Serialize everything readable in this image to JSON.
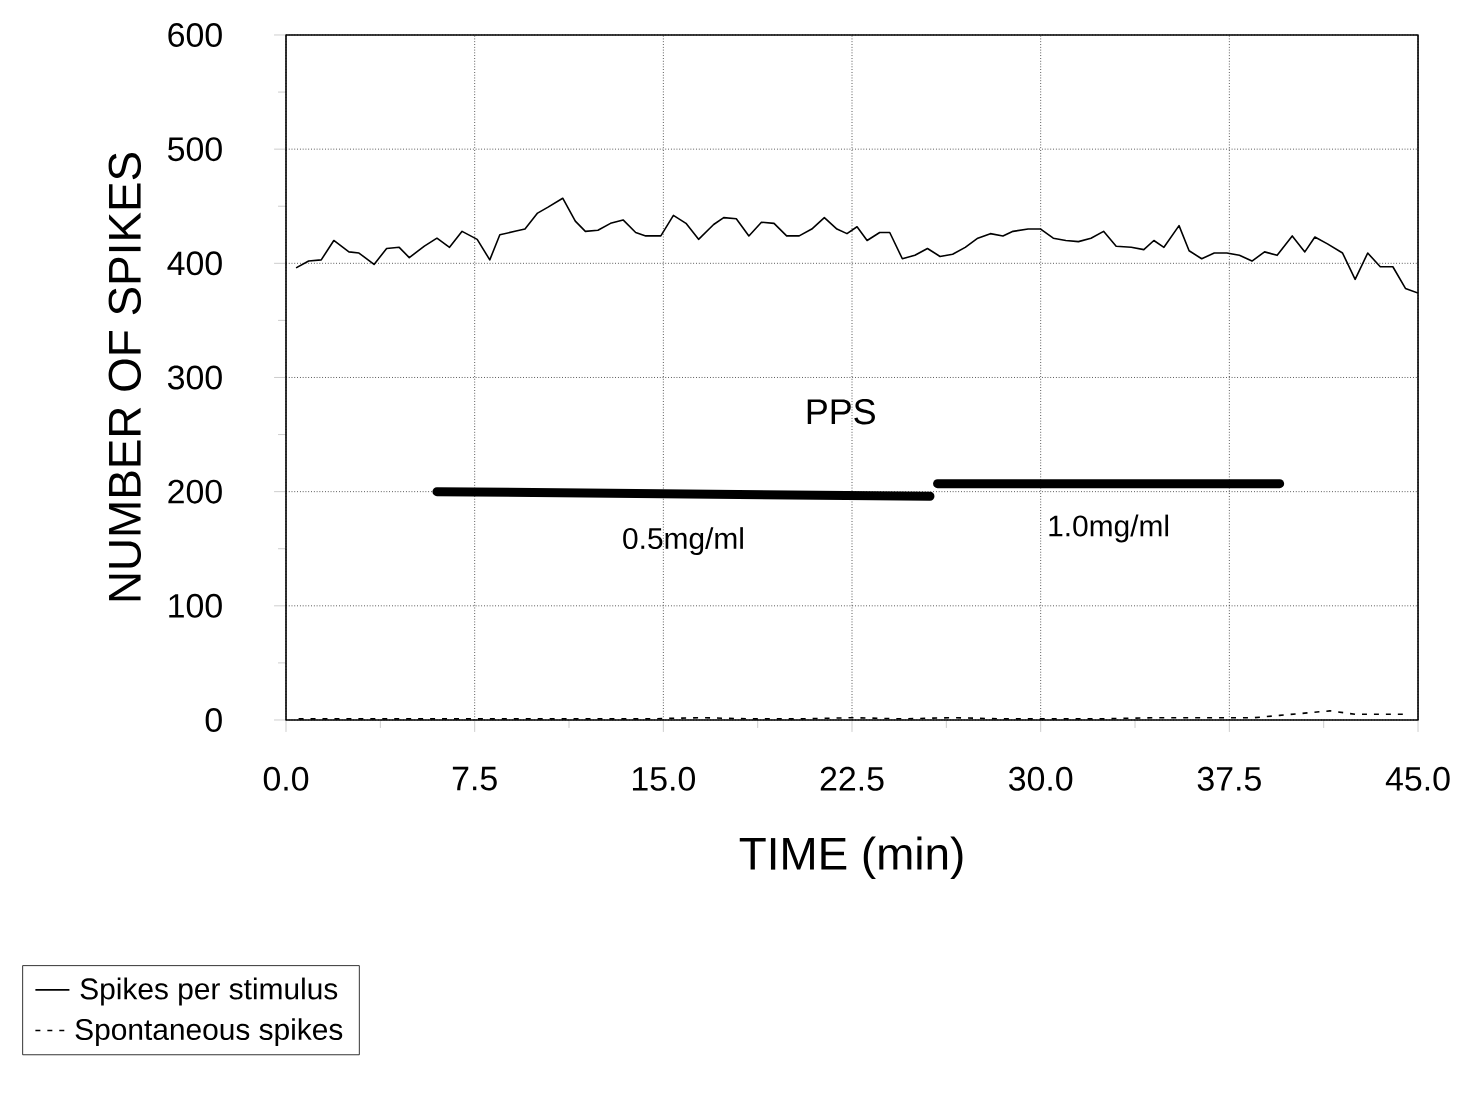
{
  "chart_data": {
    "type": "line",
    "xlabel": "TIME (min)",
    "ylabel": "NUMBER OF SPIKES",
    "xlim": [
      0,
      45
    ],
    "ylim": [
      0,
      600
    ],
    "xticks": [
      {
        "value": 0,
        "label": "0.0"
      },
      {
        "value": 7.5,
        "label": "7.5"
      },
      {
        "value": 15,
        "label": "15.0"
      },
      {
        "value": 22.5,
        "label": "22.5"
      },
      {
        "value": 30,
        "label": "30.0"
      },
      {
        "value": 37.5,
        "label": "37.5"
      },
      {
        "value": 45,
        "label": "45.0"
      }
    ],
    "yticks": [
      0,
      100,
      200,
      300,
      400,
      500,
      600
    ],
    "grid": true,
    "legend": "bottom left",
    "marker": "none",
    "annotations": [
      "PPS"
    ],
    "x": [
      0.4,
      0.9,
      1.4,
      1.9,
      2.5,
      2.9,
      3.5,
      4.0,
      4.5,
      4.9,
      5.5,
      6.0,
      6.5,
      7.0,
      7.6,
      8.1,
      8.5,
      9.1,
      9.5,
      10.0,
      10.4,
      11.0,
      11.5,
      11.9,
      12.4,
      12.9,
      13.4,
      13.9,
      14.3,
      14.9,
      15.4,
      15.9,
      16.4,
      17.0,
      17.4,
      17.9,
      18.4,
      18.9,
      19.4,
      19.9,
      20.4,
      20.9,
      21.4,
      21.9,
      22.3,
      22.7,
      23.1,
      23.6,
      24.0,
      24.5,
      25.0,
      25.5,
      26.0,
      26.5,
      27.0,
      27.5,
      28.0,
      28.5,
      28.9,
      29.5,
      30.0,
      30.5,
      31.0,
      31.5,
      32.0,
      32.5,
      33.0,
      33.6,
      34.1,
      34.5,
      34.9,
      35.5,
      35.9,
      36.4,
      36.9,
      37.4,
      37.9,
      38.4,
      38.9,
      39.4,
      40.0,
      40.5,
      40.9,
      41.4,
      42.0,
      42.5,
      43.0,
      43.5,
      44.0,
      44.5,
      45.0
    ],
    "series": [
      {
        "name": "Spikes per stimulus",
        "color": "#000000",
        "line_style": "solid",
        "values": [
          396,
          402,
          403,
          420,
          410,
          409,
          399,
          413,
          414,
          405,
          415,
          422,
          414,
          428,
          421,
          403,
          425,
          428,
          430,
          444,
          449,
          457,
          437,
          428,
          429,
          435,
          438,
          427,
          424,
          424,
          442,
          435,
          421,
          434,
          440,
          439,
          424,
          436,
          435,
          424,
          424,
          430,
          440,
          430,
          426,
          432,
          420,
          427,
          427,
          404,
          407,
          413,
          406,
          408,
          414,
          422,
          426,
          424,
          428,
          430,
          430,
          422,
          420,
          419,
          422,
          428,
          415,
          414,
          412,
          420,
          414,
          433,
          411,
          404,
          409,
          409,
          407,
          402,
          410,
          407,
          424,
          410,
          423,
          417,
          409,
          386,
          409,
          397,
          397,
          378,
          374
        ]
      },
      {
        "name": "Spontaneous spikes",
        "color": "#000000",
        "line_style": "dotted",
        "x": [
          0.5,
          2.5,
          4.5,
          6.5,
          8.5,
          10.5,
          12.5,
          14.5,
          16.5,
          18.5,
          20.5,
          22.5,
          24.5,
          26.5,
          28.5,
          30.5,
          32.5,
          34.5,
          36.5,
          38.5,
          39.5,
          40.5,
          41.5,
          42.5,
          43.5,
          44.5
        ],
        "values": [
          1,
          1,
          1,
          1,
          1,
          1,
          1,
          1,
          2,
          1,
          1,
          2,
          1,
          2,
          1,
          1,
          1,
          2,
          2,
          2,
          4,
          6,
          8,
          5,
          5,
          5
        ]
      },
      {
        "name": "0.5mg/ml",
        "color": "#000000",
        "line_style": "solid",
        "x": [
          6.0,
          25.6
        ],
        "values": [
          200,
          196
        ]
      },
      {
        "name": "1.0mg/ml",
        "color": "#000000",
        "line_style": "solid",
        "x": [
          25.9,
          39.5
        ],
        "values": [
          207,
          207
        ]
      }
    ]
  }
}
